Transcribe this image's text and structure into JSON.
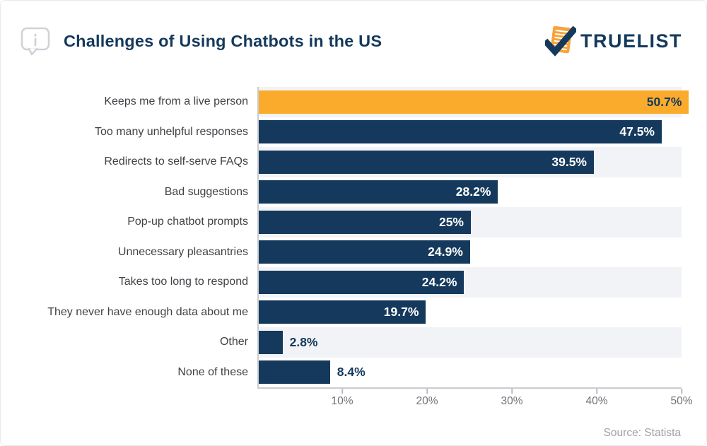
{
  "header": {
    "title": "Challenges of Using Chatbots in the US",
    "logo_text": "TRUELIST"
  },
  "chart_data": {
    "type": "bar",
    "orientation": "horizontal",
    "title": "Challenges of Using Chatbots in the US",
    "categories": [
      "Keeps me from a live person",
      "Too many unhelpful responses",
      "Redirects to self-serve FAQs",
      "Bad suggestions",
      "Pop-up chatbot prompts",
      "Unnecessary pleasantries",
      "Takes too long to respond",
      "They never have enough data about me",
      "Other",
      "None of these"
    ],
    "values": [
      50.7,
      47.5,
      39.5,
      28.2,
      25,
      24.9,
      24.2,
      19.7,
      2.8,
      8.4
    ],
    "value_labels": [
      "50.7%",
      "47.5%",
      "39.5%",
      "28.2%",
      "25%",
      "24.9%",
      "24.2%",
      "19.7%",
      "2.8%",
      "8.4%"
    ],
    "highlight_index": 0,
    "xlim": [
      0,
      50
    ],
    "x_ticks": [
      {
        "value": 10,
        "label": "10%"
      },
      {
        "value": 20,
        "label": "20%"
      },
      {
        "value": 30,
        "label": "30%"
      },
      {
        "value": 40,
        "label": "40%"
      },
      {
        "value": 50,
        "label": "50%"
      }
    ],
    "xlabel": "",
    "ylabel": "",
    "grid": "off",
    "legend": "none",
    "colors": {
      "bar": "#14395c",
      "highlight_bar": "#fbab2c",
      "row_stripe": "#f1f3f6",
      "value_inside": "#ffffff",
      "value_on_highlight": "#14395c"
    }
  },
  "footer": {
    "source": "Source: Statista"
  }
}
